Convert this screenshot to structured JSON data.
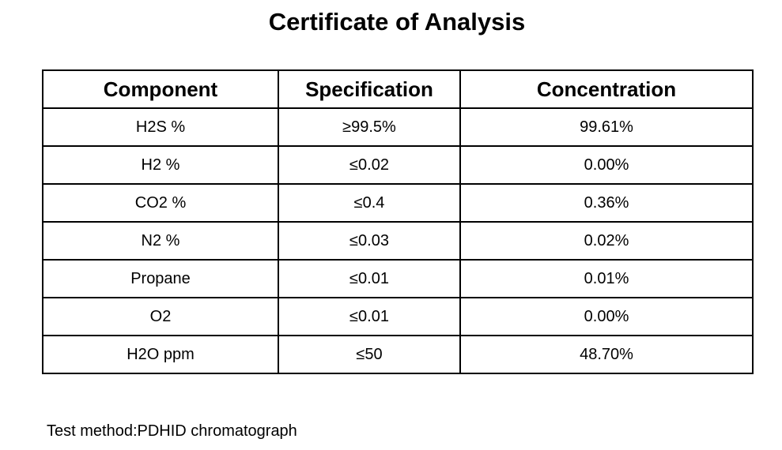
{
  "document": {
    "title": "Certificate of Analysis",
    "table": {
      "headers": [
        "Component",
        "Specification",
        "Concentration"
      ],
      "rows": [
        [
          "H2S %",
          "≥99.5%",
          "99.61%"
        ],
        [
          "H2 %",
          "≤0.02",
          "0.00%"
        ],
        [
          "CO2 %",
          "≤0.4",
          "0.36%"
        ],
        [
          "N2 %",
          "≤0.03",
          "0.02%"
        ],
        [
          "Propane",
          "≤0.01",
          "0.01%"
        ],
        [
          "O2",
          "≤0.01",
          "0.00%"
        ],
        [
          "H2O ppm",
          "≤50",
          "48.70%"
        ]
      ]
    },
    "footer": "Test method:PDHID chromatograph"
  }
}
